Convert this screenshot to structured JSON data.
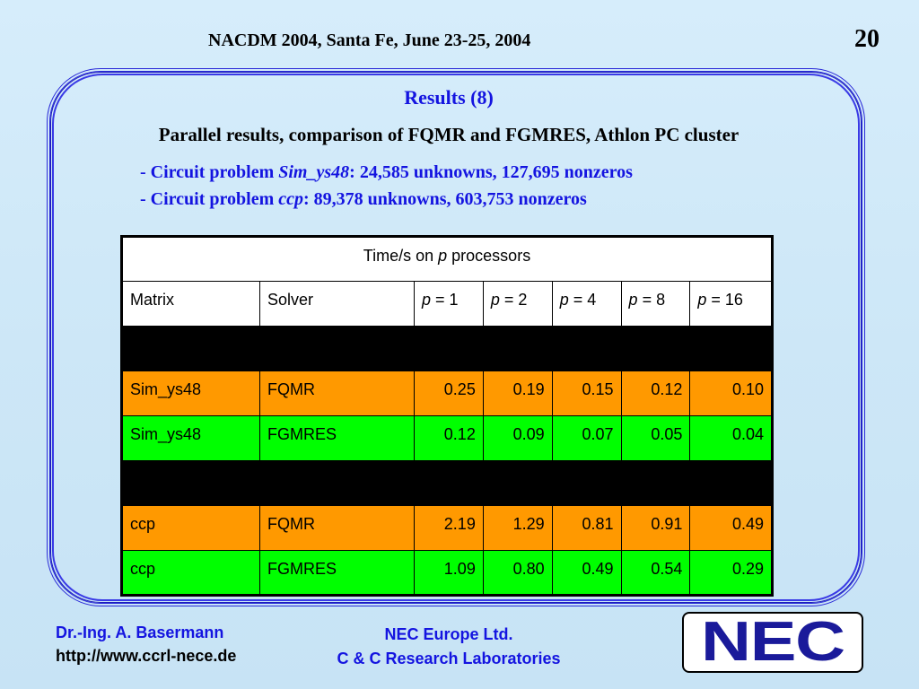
{
  "header": {
    "title": "NACDM 2004, Santa Fe, June 23-25, 2004",
    "page_number": "20"
  },
  "slide": {
    "title": "Results (8)",
    "subtitle": "Parallel results, comparison of FQMR and FGMRES, Athlon PC cluster",
    "bullets": [
      {
        "prefix": "- Circuit problem ",
        "name": "Sim_ys48",
        "suffix": ": 24,585 unknowns, 127,695 nonzeros"
      },
      {
        "prefix": "- Circuit problem ",
        "name": "ccp",
        "suffix": ": 89,378 unknowns, 603,753 nonzeros"
      }
    ]
  },
  "table": {
    "caption_prefix": "Time/s on ",
    "caption_var": "p",
    "caption_suffix": " processors",
    "col_matrix": "Matrix",
    "col_solver": "Solver",
    "p_var": "p",
    "p_values": [
      "= 1",
      "= 2",
      "= 4",
      "= 8",
      "= 16"
    ],
    "rows": [
      {
        "matrix": "Sim_ys48",
        "solver": "FQMR",
        "times": [
          "0.25",
          "0.19",
          "0.15",
          "0.12",
          "0.10"
        ],
        "color": "#ff9900"
      },
      {
        "matrix": "Sim_ys48",
        "solver": "FGMRES",
        "times": [
          "0.12",
          "0.09",
          "0.07",
          "0.05",
          "0.04"
        ],
        "color": "#00ff00"
      },
      {
        "matrix": "ccp",
        "solver": "FQMR",
        "times": [
          "2.19",
          "1.29",
          "0.81",
          "0.91",
          "0.49"
        ],
        "color": "#ff9900"
      },
      {
        "matrix": "ccp",
        "solver": "FGMRES",
        "times": [
          "1.09",
          "0.80",
          "0.49",
          "0.54",
          "0.29"
        ],
        "color": "#00ff00"
      }
    ]
  },
  "footer": {
    "author": "Dr.-Ing. A. Basermann",
    "url": "http://www.ccrl-nece.de",
    "company_line1": "NEC Europe Ltd.",
    "company_line2": "C & C Research Laboratories",
    "logo_text": "NEC"
  },
  "colors": {
    "accent_blue": "#1414e0",
    "orange_row": "#ff9900",
    "green_row": "#00ff00"
  }
}
